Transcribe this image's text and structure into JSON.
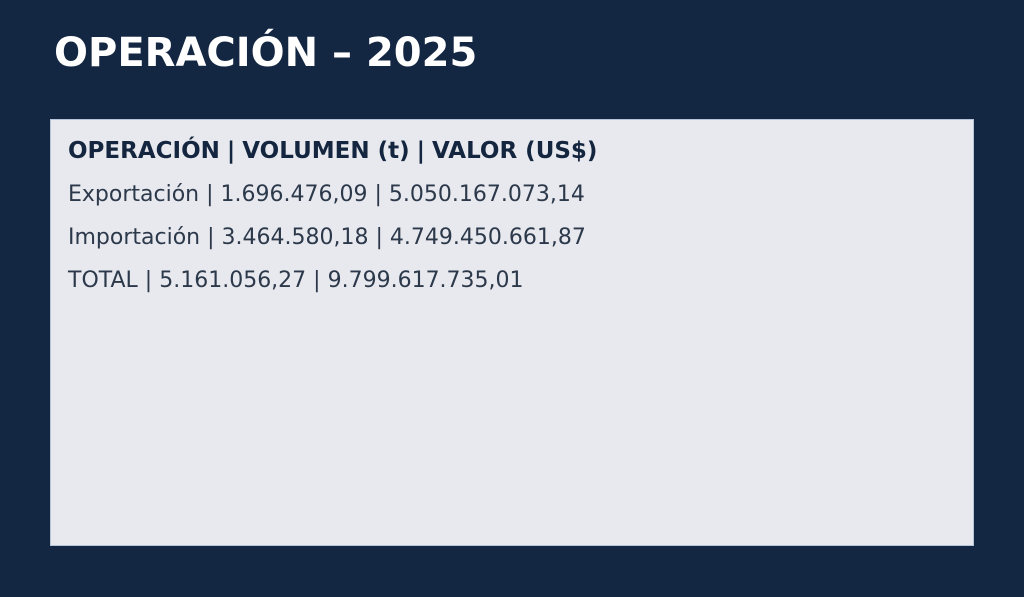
{
  "slide": {
    "title": "OPERACIÓN – 2025"
  },
  "table": {
    "separator": "|",
    "header": {
      "operation": "OPERACIÓN",
      "volume": "VOLUMEN (t)",
      "value": "VALOR (US$)"
    },
    "rows": [
      {
        "operation": "Exportación",
        "volume": "1.696.476,09",
        "value": "5.050.167.073,14"
      },
      {
        "operation": "Importación",
        "volume": "3.464.580,18",
        "value": "4.749.450.661,87"
      },
      {
        "operation": "TOTAL",
        "volume": "5.161.056,27",
        "value": "9.799.617.735,01"
      }
    ]
  },
  "colors": {
    "background": "#132642",
    "title_text": "#ffffff",
    "panel_bg": "#e8e9ee",
    "panel_border": "#b7c3d9",
    "header_text": "#14263f",
    "row_text": "#2c394b"
  }
}
